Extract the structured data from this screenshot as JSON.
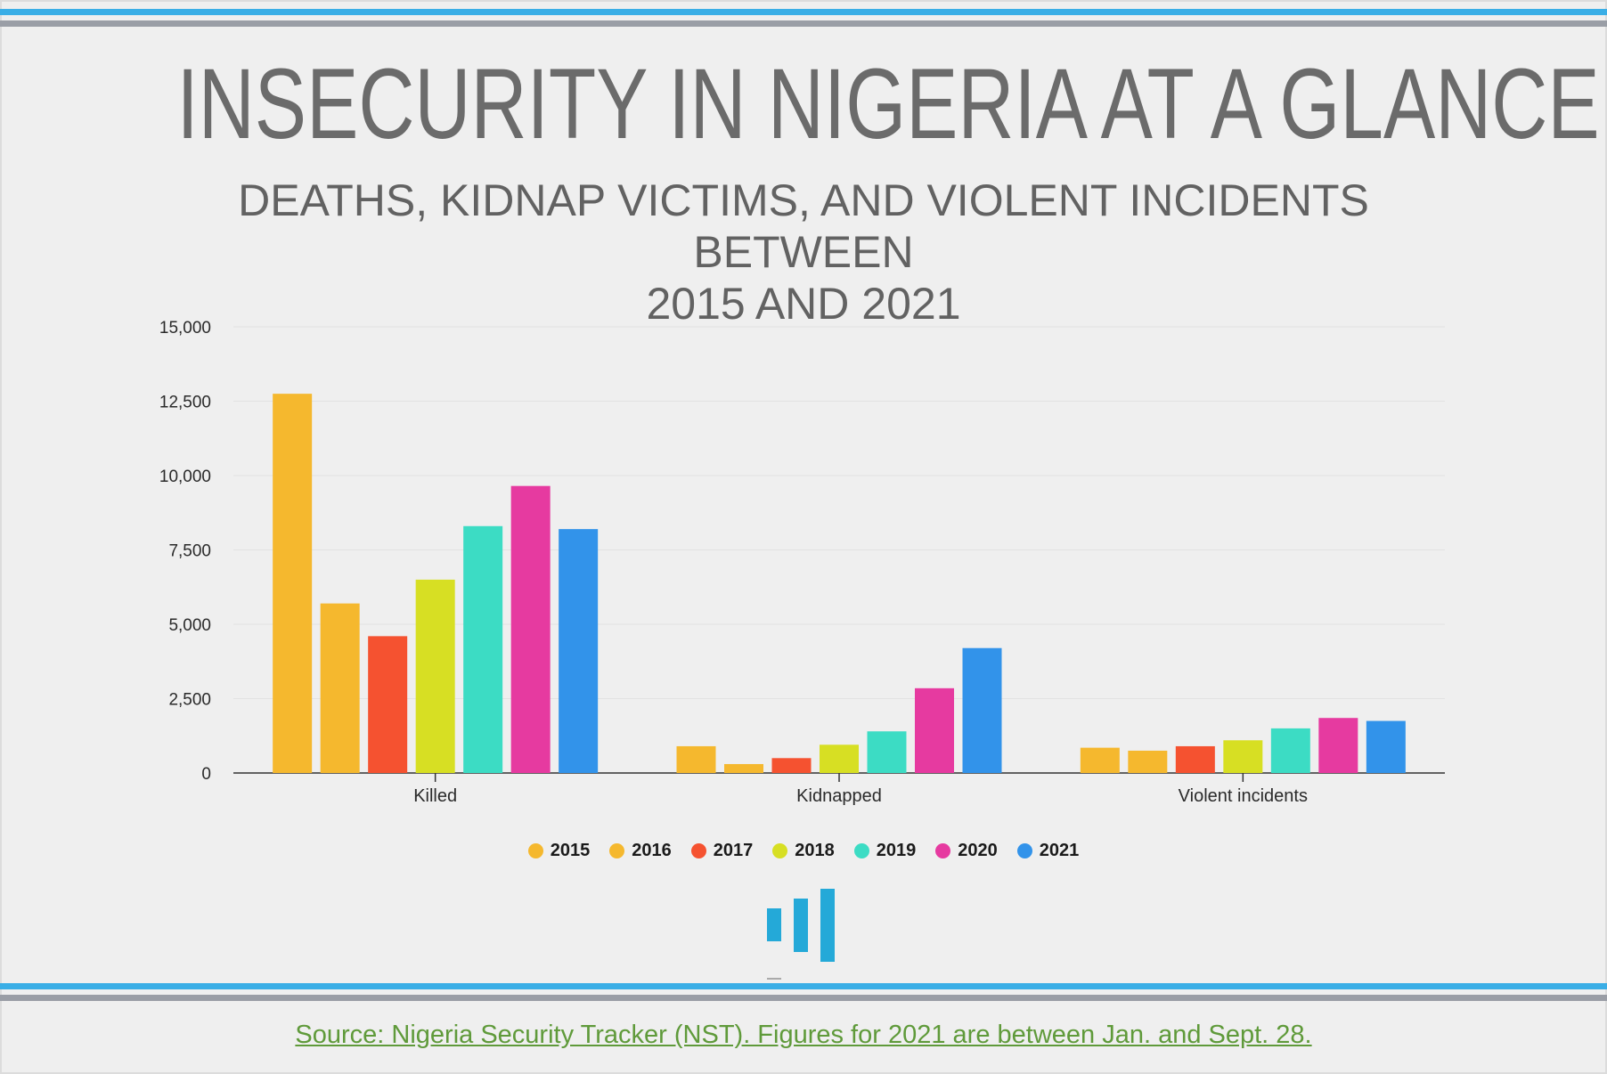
{
  "header": {
    "title": "INSECURITY IN NIGERIA AT A GLANCE",
    "subtitle_line1": "DEATHS, KIDNAP VICTIMS, AND VIOLENT INCIDENTS BETWEEN",
    "subtitle_line2": "2015 AND 2021"
  },
  "chart_data": {
    "type": "bar",
    "categories": [
      "Killed",
      "Kidnapped",
      "Violent incidents"
    ],
    "series": [
      {
        "name": "2015",
        "color": "#f5b82e",
        "values": [
          12750,
          900,
          850
        ]
      },
      {
        "name": "2016",
        "color": "#f5b82e",
        "values": [
          5700,
          300,
          750
        ]
      },
      {
        "name": "2017",
        "color": "#f55230",
        "values": [
          4600,
          500,
          900
        ]
      },
      {
        "name": "2018",
        "color": "#d7df23",
        "values": [
          6500,
          950,
          1100
        ]
      },
      {
        "name": "2019",
        "color": "#3cdcc4",
        "values": [
          8300,
          1400,
          1500
        ]
      },
      {
        "name": "2020",
        "color": "#e63aa0",
        "values": [
          9650,
          2850,
          1850
        ]
      },
      {
        "name": "2021",
        "color": "#3293ea",
        "values": [
          8200,
          4200,
          1750
        ]
      }
    ],
    "ylim": [
      0,
      15000
    ],
    "yticks": [
      "0",
      "2,500",
      "5,000",
      "7,500",
      "10,000",
      "12,500",
      "15,000"
    ],
    "ytick_values": [
      0,
      2500,
      5000,
      7500,
      10000,
      12500,
      15000
    ],
    "grid": true,
    "legend_position": "bottom"
  },
  "footer": {
    "source": "Source: Nigeria Security Tracker (NST). Figures for 2021 are between Jan. and Sept. 28."
  },
  "logo": {
    "name": "bar-chart-logo-icon",
    "color": "#24a9d8"
  }
}
